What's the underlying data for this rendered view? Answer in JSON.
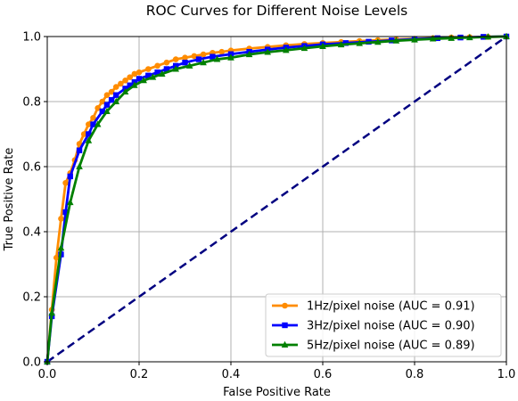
{
  "chart_data": {
    "type": "line",
    "title": "ROC Curves for Different Noise Levels",
    "xlabel": "False Positive Rate",
    "ylabel": "True Positive Rate",
    "xlim": [
      0.0,
      1.0
    ],
    "ylim": [
      0.0,
      1.0
    ],
    "xticks": [
      "0.0",
      "0.2",
      "0.4",
      "0.6",
      "0.8",
      "1.0"
    ],
    "yticks": [
      "0.0",
      "0.2",
      "0.4",
      "0.6",
      "0.8",
      "1.0"
    ],
    "grid": true,
    "legend_position": "lower-right",
    "series": [
      {
        "name": "1Hz/pixel noise (AUC = 0.91)",
        "color": "#ff8c00",
        "marker": "circle",
        "x": [
          0.0,
          0.01,
          0.02,
          0.03,
          0.04,
          0.05,
          0.06,
          0.07,
          0.08,
          0.09,
          0.1,
          0.11,
          0.12,
          0.13,
          0.14,
          0.15,
          0.16,
          0.17,
          0.18,
          0.19,
          0.2,
          0.22,
          0.24,
          0.26,
          0.28,
          0.3,
          0.32,
          0.34,
          0.36,
          0.38,
          0.4,
          0.44,
          0.48,
          0.52,
          0.56,
          0.6,
          0.64,
          0.68,
          0.72,
          0.76,
          0.8,
          0.84,
          0.88,
          0.92,
          0.96,
          1.0
        ],
        "y": [
          0.0,
          0.16,
          0.32,
          0.44,
          0.55,
          0.58,
          0.62,
          0.67,
          0.7,
          0.73,
          0.75,
          0.78,
          0.8,
          0.82,
          0.83,
          0.845,
          0.855,
          0.865,
          0.875,
          0.885,
          0.89,
          0.9,
          0.91,
          0.92,
          0.93,
          0.935,
          0.94,
          0.945,
          0.95,
          0.953,
          0.957,
          0.963,
          0.968,
          0.973,
          0.977,
          0.98,
          0.983,
          0.986,
          0.989,
          0.991,
          0.993,
          0.995,
          0.997,
          0.998,
          0.999,
          1.0
        ]
      },
      {
        "name": "3Hz/pixel noise (AUC = 0.90)",
        "color": "#0000ff",
        "marker": "square",
        "x": [
          0.0,
          0.01,
          0.03,
          0.04,
          0.05,
          0.07,
          0.09,
          0.1,
          0.12,
          0.13,
          0.14,
          0.15,
          0.17,
          0.18,
          0.19,
          0.2,
          0.22,
          0.24,
          0.26,
          0.28,
          0.3,
          0.33,
          0.36,
          0.4,
          0.44,
          0.48,
          0.52,
          0.56,
          0.6,
          0.65,
          0.7,
          0.75,
          0.8,
          0.85,
          0.9,
          0.95,
          1.0
        ],
        "y": [
          0.0,
          0.14,
          0.33,
          0.46,
          0.57,
          0.65,
          0.7,
          0.73,
          0.77,
          0.79,
          0.805,
          0.82,
          0.84,
          0.85,
          0.86,
          0.87,
          0.88,
          0.89,
          0.9,
          0.91,
          0.92,
          0.93,
          0.938,
          0.946,
          0.953,
          0.96,
          0.966,
          0.971,
          0.976,
          0.98,
          0.984,
          0.988,
          0.992,
          0.995,
          0.997,
          0.999,
          1.0
        ]
      },
      {
        "name": "5Hz/pixel noise (AUC = 0.89)",
        "color": "#008000",
        "marker": "triangle",
        "x": [
          0.0,
          0.01,
          0.03,
          0.05,
          0.07,
          0.09,
          0.11,
          0.13,
          0.15,
          0.17,
          0.19,
          0.21,
          0.23,
          0.25,
          0.28,
          0.31,
          0.34,
          0.37,
          0.4,
          0.44,
          0.48,
          0.52,
          0.56,
          0.6,
          0.64,
          0.68,
          0.72,
          0.76,
          0.8,
          0.84,
          0.88,
          0.92,
          0.96,
          1.0
        ],
        "y": [
          0.0,
          0.15,
          0.35,
          0.49,
          0.6,
          0.68,
          0.73,
          0.77,
          0.8,
          0.83,
          0.85,
          0.865,
          0.875,
          0.885,
          0.9,
          0.91,
          0.92,
          0.93,
          0.935,
          0.945,
          0.952,
          0.958,
          0.964,
          0.97,
          0.975,
          0.979,
          0.983,
          0.987,
          0.99,
          0.993,
          0.995,
          0.997,
          0.999,
          1.0
        ]
      },
      {
        "name": "",
        "color": "#000080",
        "style": "dashed",
        "x": [
          0.0,
          1.0
        ],
        "y": [
          0.0,
          1.0
        ]
      }
    ]
  }
}
